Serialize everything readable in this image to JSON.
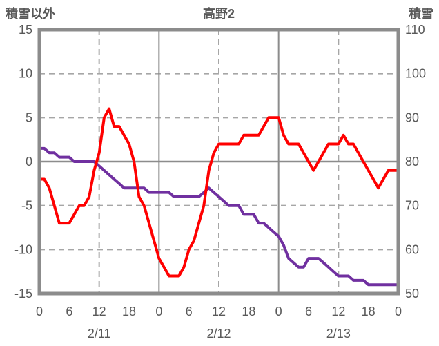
{
  "chart_data": {
    "type": "line",
    "title": "高野2",
    "x": {
      "unit": "hour",
      "start": 0,
      "end": 72,
      "tick_interval": 6,
      "tick_labels": [
        "0",
        "6",
        "12",
        "18",
        "0",
        "6",
        "12",
        "18",
        "0",
        "6",
        "12",
        "18",
        "0"
      ],
      "day_labels": [
        {
          "label": "2/11",
          "center_hour": 12
        },
        {
          "label": "2/12",
          "center_hour": 36
        },
        {
          "label": "2/13",
          "center_hour": 60
        }
      ]
    },
    "left_axis": {
      "title": "積雪以外",
      "min": -15,
      "max": 15,
      "ticks": [
        15,
        10,
        5,
        0,
        -5,
        -10,
        -15
      ]
    },
    "right_axis": {
      "title": "積雪",
      "min": 50,
      "max": 110,
      "ticks": [
        110,
        100,
        90,
        80,
        70,
        60,
        50
      ]
    },
    "gridlines": {
      "horizontal_dashed_left_values": [
        10,
        5,
        -5,
        -10
      ],
      "horizontal_solid_left_values": [
        0
      ],
      "vertical_dashed_hours": [
        12,
        36,
        60
      ],
      "vertical_solid_hours": [
        24,
        48
      ]
    },
    "series": [
      {
        "name": "積雪以外",
        "axis": "left",
        "color": "#FF0000",
        "values": [
          -2,
          -2,
          -3,
          -5,
          -7,
          -7,
          -7,
          -6,
          -5,
          -5,
          -4,
          -1,
          1,
          5,
          6,
          4,
          4,
          3,
          2,
          0,
          -4,
          -5,
          -7,
          -9,
          -11,
          -12,
          -13,
          -13,
          -13,
          -12,
          -10,
          -9,
          -7,
          -5,
          -1,
          1,
          2,
          2,
          2,
          2,
          2,
          3,
          3,
          3,
          3,
          4,
          5,
          5,
          5,
          3,
          2,
          2,
          2,
          1,
          0,
          -1,
          0,
          1,
          2,
          2,
          2,
          3,
          2,
          2,
          1,
          0,
          -1,
          -2,
          -3,
          -2,
          -1,
          -1,
          -1
        ]
      },
      {
        "name": "積雪",
        "axis": "right",
        "color": "#7030A0",
        "values": [
          83,
          83,
          82,
          82,
          81,
          81,
          81,
          80,
          80,
          80,
          80,
          80,
          79,
          78,
          77,
          76,
          75,
          74,
          74,
          74,
          74,
          74,
          73,
          73,
          73,
          73,
          73,
          72,
          72,
          72,
          72,
          72,
          72,
          73,
          74,
          73,
          72,
          71,
          70,
          70,
          70,
          68,
          68,
          68,
          66,
          66,
          65,
          64,
          63,
          61,
          58,
          57,
          56,
          56,
          58,
          58,
          58,
          57,
          56,
          55,
          54,
          54,
          54,
          53,
          53,
          53,
          52,
          52,
          52,
          52,
          52,
          52,
          52
        ]
      }
    ],
    "colors": {
      "grid_dashed": "#A6A6A6",
      "grid_solid": "#8C8C8C",
      "plot_border": "#8C8C8C",
      "text": "#595959",
      "background": "#FFFFFF"
    }
  }
}
